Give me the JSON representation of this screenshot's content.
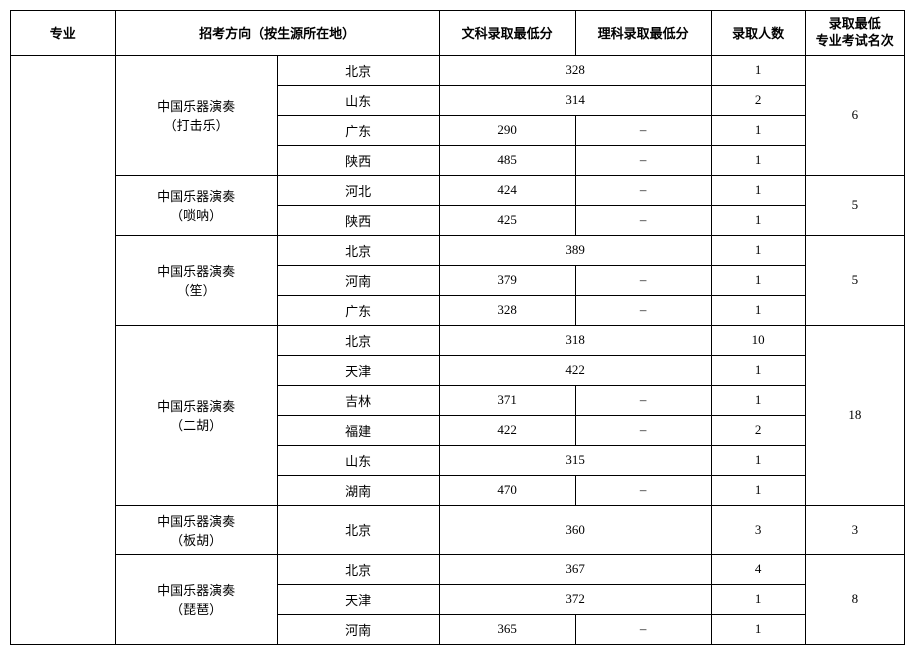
{
  "headers": {
    "major": "专业",
    "direction": "招考方向（按生源所在地）",
    "arts_min": "文科录取最低分",
    "science_min": "理科录取最低分",
    "admit_count": "录取人数",
    "rank_min_l1": "录取最低",
    "rank_min_l2": "专业考试名次"
  },
  "groups": [
    {
      "dir": "中国乐器演奏\n（打击乐）",
      "rank": "6",
      "rows": [
        {
          "prov": "北京",
          "wk": "328",
          "lk": "MERGED",
          "cnt": "1"
        },
        {
          "prov": "山东",
          "wk": "314",
          "lk": "MERGED",
          "cnt": "2"
        },
        {
          "prov": "广东",
          "wk": "290",
          "lk": "–",
          "cnt": "1"
        },
        {
          "prov": "陕西",
          "wk": "485",
          "lk": "–",
          "cnt": "1"
        }
      ]
    },
    {
      "dir": "中国乐器演奏\n（唢呐）",
      "rank": "5",
      "rows": [
        {
          "prov": "河北",
          "wk": "424",
          "lk": "–",
          "cnt": "1"
        },
        {
          "prov": "陕西",
          "wk": "425",
          "lk": "–",
          "cnt": "1"
        }
      ]
    },
    {
      "dir": "中国乐器演奏\n（笙）",
      "rank": "5",
      "rows": [
        {
          "prov": "北京",
          "wk": "389",
          "lk": "MERGED",
          "cnt": "1"
        },
        {
          "prov": "河南",
          "wk": "379",
          "lk": "–",
          "cnt": "1"
        },
        {
          "prov": "广东",
          "wk": "328",
          "lk": "–",
          "cnt": "1"
        }
      ]
    },
    {
      "dir": "中国乐器演奏\n（二胡）",
      "rank": "18",
      "rows": [
        {
          "prov": "北京",
          "wk": "318",
          "lk": "MERGED",
          "cnt": "10"
        },
        {
          "prov": "天津",
          "wk": "422",
          "lk": "MERGED",
          "cnt": "1"
        },
        {
          "prov": "吉林",
          "wk": "371",
          "lk": "–",
          "cnt": "1"
        },
        {
          "prov": "福建",
          "wk": "422",
          "lk": "–",
          "cnt": "2"
        },
        {
          "prov": "山东",
          "wk": "315",
          "lk": "MERGED",
          "cnt": "1"
        },
        {
          "prov": "湖南",
          "wk": "470",
          "lk": "–",
          "cnt": "1"
        }
      ]
    },
    {
      "dir": "中国乐器演奏\n（板胡）",
      "rank": "3",
      "rows": [
        {
          "prov": "北京",
          "wk": "360",
          "lk": "MERGED",
          "cnt": "3"
        }
      ]
    },
    {
      "dir": "中国乐器演奏\n（琵琶）",
      "rank": "8",
      "rows": [
        {
          "prov": "北京",
          "wk": "367",
          "lk": "MERGED",
          "cnt": "4"
        },
        {
          "prov": "天津",
          "wk": "372",
          "lk": "MERGED",
          "cnt": "1"
        },
        {
          "prov": "河南",
          "wk": "365",
          "lk": "–",
          "cnt": "1"
        }
      ]
    }
  ]
}
